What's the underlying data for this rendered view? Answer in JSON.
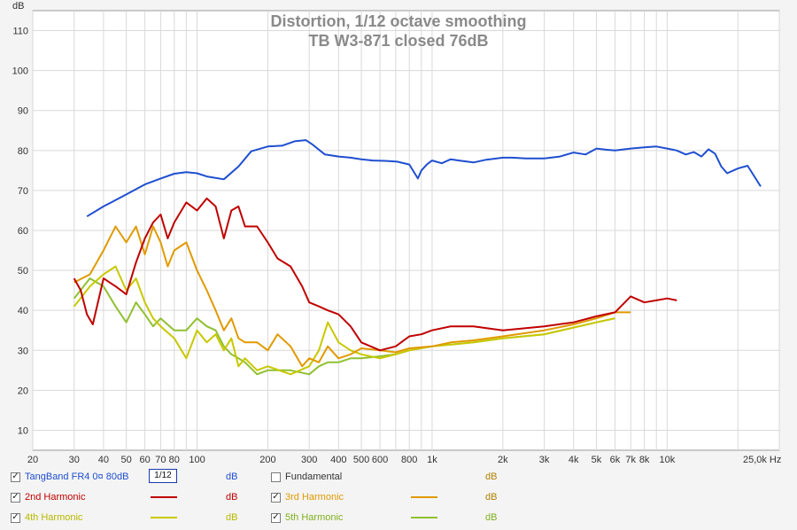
{
  "chart_data": {
    "type": "line",
    "title": "Distortion, 1/12 octave smoothing",
    "subtitle": "TB W3-871 closed 76dB",
    "ylabel": "dB",
    "xscale": "log",
    "xlim": [
      20,
      30000
    ],
    "ylim": [
      5,
      115
    ],
    "x_ticks": [
      {
        "v": 20,
        "l": "20"
      },
      {
        "v": 30,
        "l": "30"
      },
      {
        "v": 40,
        "l": "40"
      },
      {
        "v": 50,
        "l": "50"
      },
      {
        "v": 60,
        "l": "60"
      },
      {
        "v": 70,
        "l": "70"
      },
      {
        "v": 80,
        "l": "80"
      },
      {
        "v": 100,
        "l": "100"
      },
      {
        "v": 200,
        "l": "200"
      },
      {
        "v": 300,
        "l": "300"
      },
      {
        "v": 400,
        "l": "400"
      },
      {
        "v": 500,
        "l": "500"
      },
      {
        "v": 600,
        "l": "600"
      },
      {
        "v": 800,
        "l": "800"
      },
      {
        "v": 1000,
        "l": "1k"
      },
      {
        "v": 2000,
        "l": "2k"
      },
      {
        "v": 3000,
        "l": "3k"
      },
      {
        "v": 4000,
        "l": "4k"
      },
      {
        "v": 5000,
        "l": "5k"
      },
      {
        "v": 6000,
        "l": "6k"
      },
      {
        "v": 7000,
        "l": "7k"
      },
      {
        "v": 8000,
        "l": "8k"
      },
      {
        "v": 10000,
        "l": "10k"
      },
      {
        "v": 25000,
        "l": "25,0k Hz"
      }
    ],
    "y_ticks": [
      10,
      20,
      30,
      40,
      50,
      60,
      70,
      80,
      90,
      100,
      110
    ],
    "grid": true,
    "series": [
      {
        "name": "TangBand FR4 0¤ 80dB",
        "color": "#1f4fd0",
        "x": [
          34,
          40,
          50,
          60,
          70,
          80,
          90,
          100,
          110,
          130,
          150,
          170,
          200,
          230,
          260,
          290,
          310,
          350,
          400,
          450,
          500,
          560,
          630,
          710,
          800,
          870,
          900,
          950,
          1000,
          1100,
          1200,
          1300,
          1500,
          1700,
          2000,
          2200,
          2500,
          3000,
          3500,
          4000,
          4500,
          5000,
          5500,
          6000,
          7000,
          8000,
          9000,
          10000,
          11000,
          12000,
          13000,
          14000,
          15000,
          16000,
          17000,
          18000,
          20000,
          22000,
          25000
        ],
        "y": [
          63.5,
          66,
          69,
          71.5,
          73,
          74.2,
          74.6,
          74.3,
          73.5,
          72.8,
          76,
          79.8,
          81,
          81.2,
          82.3,
          82.6,
          81.5,
          79,
          78.5,
          78.2,
          77.8,
          77.5,
          77.4,
          77.2,
          76.5,
          73,
          75,
          76.5,
          77.5,
          76.8,
          77.8,
          77.5,
          77,
          77.7,
          78.2,
          78.2,
          78,
          78,
          78.5,
          79.5,
          79,
          80.5,
          80.2,
          80,
          80.5,
          80.8,
          81,
          80.5,
          80,
          79,
          79.6,
          78.5,
          80.3,
          79.2,
          76,
          74.3,
          75.5,
          76.2,
          71
        ]
      },
      {
        "name": "2nd Harmonic",
        "color": "#c00000",
        "x": [
          30,
          32,
          34,
          36,
          40,
          45,
          50,
          55,
          60,
          65,
          70,
          75,
          80,
          90,
          100,
          110,
          120,
          130,
          140,
          150,
          160,
          180,
          200,
          220,
          250,
          280,
          300,
          330,
          360,
          400,
          450,
          500,
          600,
          700,
          800,
          900,
          1000,
          1200,
          1500,
          2000,
          3000,
          4000,
          5000,
          6000,
          7000,
          8000,
          9000,
          10000,
          11000
        ],
        "y": [
          48,
          45,
          39,
          36.5,
          48,
          46,
          44,
          52,
          58,
          62,
          64,
          58,
          62,
          67,
          65,
          68,
          66,
          58,
          65,
          66,
          61,
          61,
          57,
          53,
          51,
          46,
          42,
          41,
          40,
          39,
          36,
          32,
          30,
          31,
          33.5,
          34,
          35,
          36,
          36,
          35,
          36,
          37,
          38.5,
          39.5,
          43.5,
          42,
          42.5,
          43,
          42.5
        ]
      },
      {
        "name": "3rd Harmonic",
        "color": "#e09a00",
        "x": [
          30,
          35,
          40,
          45,
          50,
          55,
          60,
          65,
          70,
          75,
          80,
          90,
          100,
          110,
          120,
          130,
          140,
          150,
          160,
          180,
          200,
          220,
          250,
          280,
          300,
          330,
          360,
          400,
          450,
          500,
          600,
          700,
          800,
          1000,
          1200,
          1500,
          2000,
          3000,
          4000,
          5000,
          6000,
          7000
        ],
        "y": [
          47,
          49,
          55,
          61,
          57,
          61,
          54,
          61,
          57,
          51,
          55,
          57,
          50,
          45,
          40,
          35,
          38,
          33,
          32,
          32,
          30,
          34,
          31,
          26,
          28,
          27,
          31,
          28,
          29,
          30.5,
          30,
          29.5,
          30.5,
          31,
          32,
          32.5,
          33.5,
          35,
          36.5,
          38,
          39.5,
          39.5
        ]
      },
      {
        "name": "4th Harmonic",
        "color": "#c8c800",
        "x": [
          30,
          35,
          40,
          45,
          50,
          55,
          60,
          65,
          70,
          80,
          90,
          100,
          110,
          120,
          130,
          140,
          150,
          160,
          180,
          200,
          250,
          300,
          330,
          360,
          400,
          450,
          500,
          600,
          700,
          800,
          1000,
          1500,
          2000,
          3000,
          5000,
          6000
        ],
        "y": [
          41,
          46,
          49,
          51,
          45,
          48,
          42,
          38,
          36,
          33,
          28,
          35,
          32,
          34,
          30,
          33,
          26,
          28,
          25,
          26,
          24,
          26,
          30,
          37,
          32,
          30,
          29,
          28,
          29,
          30,
          31,
          32,
          33,
          34,
          37,
          38
        ]
      },
      {
        "name": "5th Harmonic",
        "color": "#90c030",
        "x": [
          30,
          35,
          40,
          45,
          50,
          55,
          60,
          65,
          70,
          80,
          90,
          100,
          110,
          120,
          130,
          140,
          150,
          160,
          180,
          200,
          250,
          300,
          330,
          360,
          400,
          450,
          500,
          600,
          700,
          800,
          1000,
          1500,
          2000,
          3000,
          5000,
          6000
        ],
        "y": [
          43,
          48,
          46,
          41,
          37,
          42,
          39,
          36,
          38,
          35,
          35,
          38,
          36,
          35,
          31,
          29,
          28,
          27,
          24,
          25,
          25,
          24,
          26,
          27,
          27,
          28,
          28,
          28.5,
          29,
          30,
          31,
          32,
          33,
          34,
          37,
          38
        ]
      }
    ]
  },
  "legend": {
    "items": [
      {
        "name": "TangBand FR4 0¤ 80dB",
        "unit": "dB",
        "checked": true
      },
      {
        "name": "Fundamental",
        "unit": "dB",
        "checked": false
      },
      {
        "name": "2nd Harmonic",
        "unit": "dB",
        "checked": true
      },
      {
        "name": "3rd Harmonic",
        "unit": "dB",
        "checked": true
      },
      {
        "name": "4th Harmonic",
        "unit": "dB",
        "checked": true
      },
      {
        "name": "5th Harmonic",
        "unit": "dB",
        "checked": true
      }
    ],
    "smoothing_label": "1/12",
    "colors": {
      "item0": "#1f4fd0",
      "item1": "#222222",
      "item2": "#c00000",
      "item3": "#e09a00",
      "item4": "#c8c800",
      "item5": "#90c030",
      "unit_blue": "#1f4fd0",
      "unit_red": "#c00000",
      "unit_gold": "#b08000"
    }
  }
}
